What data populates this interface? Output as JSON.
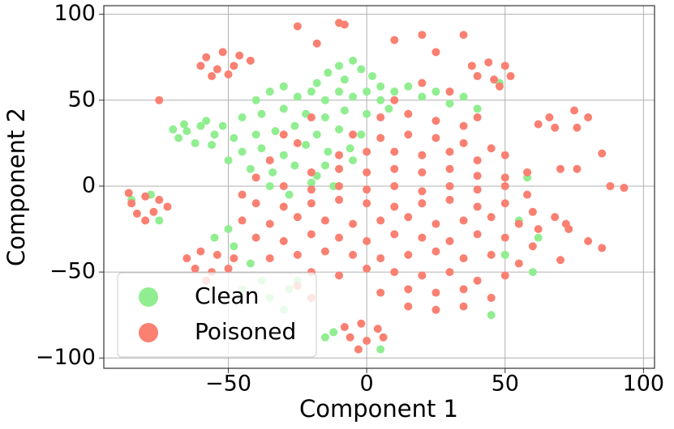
{
  "chart_data": {
    "type": "scatter",
    "xlabel": "Component 1",
    "ylabel": "Component 2",
    "xlim": [
      -95,
      104
    ],
    "ylim": [
      -106,
      105
    ],
    "xticks": [
      {
        "value": -50,
        "label": "−50"
      },
      0,
      50,
      100
    ],
    "yticks": [
      {
        "value": -100,
        "label": "−100"
      },
      {
        "value": -50,
        "label": "−50"
      },
      0,
      50,
      100
    ],
    "grid": true,
    "legend": "lower left",
    "series": [
      {
        "name": "Clean",
        "color": "#90ee90",
        "x": [
          -10,
          -5,
          -2,
          -14,
          -8,
          2,
          -18,
          5,
          -40,
          -35,
          -30,
          -25,
          -20,
          -15,
          -10,
          -5,
          0,
          5,
          10,
          15,
          20,
          25,
          30,
          -45,
          -38,
          -30,
          -22,
          -15,
          -8,
          0,
          8,
          -40,
          -33,
          -26,
          -18,
          -10,
          -2,
          -45,
          -38,
          -30,
          -22,
          -14,
          -6,
          -42,
          -34,
          -26,
          -18,
          -10,
          35,
          40,
          -48,
          -50,
          -35,
          -28,
          -20,
          -12,
          -5,
          -15,
          -65,
          -60,
          -55,
          -68,
          -62,
          -58,
          -52,
          -66,
          -56,
          -70,
          -48,
          -42,
          -38,
          -35,
          -30,
          -28,
          -45,
          -50,
          -55,
          -25,
          50,
          55,
          60,
          58,
          62,
          45,
          -15,
          5,
          -12,
          -75,
          -85,
          48,
          -78
        ],
        "values": [
          70,
          73,
          68,
          66,
          62,
          64,
          60,
          58,
          50,
          55,
          58,
          52,
          55,
          50,
          55,
          52,
          55,
          50,
          55,
          58,
          52,
          55,
          48,
          40,
          42,
          45,
          42,
          40,
          44,
          42,
          45,
          30,
          32,
          35,
          30,
          33,
          30,
          20,
          22,
          18,
          24,
          20,
          22,
          10,
          8,
          12,
          6,
          10,
          52,
          45,
          28,
          15,
          0,
          -5,
          2,
          0,
          15,
          12,
          32,
          35,
          30,
          28,
          25,
          38,
          35,
          36,
          24,
          33,
          -35,
          -45,
          -55,
          -65,
          -72,
          -60,
          -60,
          -25,
          -30,
          -55,
          -40,
          -20,
          -50,
          5,
          -30,
          -75,
          -88,
          -95,
          -85,
          -20,
          -8,
          60,
          -5
        ]
      },
      {
        "name": "Poisoned",
        "color": "#fa8072",
        "x": [
          5,
          15,
          25,
          35,
          -5,
          5,
          15,
          25,
          35,
          45,
          -10,
          0,
          10,
          20,
          30,
          40,
          50,
          -20,
          -10,
          0,
          10,
          20,
          30,
          40,
          50,
          58,
          -30,
          -20,
          -10,
          0,
          10,
          20,
          30,
          40,
          50,
          58,
          -40,
          -30,
          -20,
          -10,
          0,
          10,
          20,
          30,
          40,
          50,
          60,
          -45,
          -35,
          -25,
          -15,
          -5,
          5,
          15,
          25,
          35,
          45,
          55,
          62,
          -40,
          -30,
          -20,
          -10,
          0,
          10,
          20,
          30,
          40,
          50,
          60,
          -35,
          -25,
          -15,
          -5,
          5,
          15,
          25,
          35,
          45,
          55,
          -20,
          -10,
          0,
          10,
          20,
          30,
          40,
          50,
          5,
          15,
          25,
          35,
          45,
          15,
          25,
          35,
          -40,
          -45,
          -25,
          -35,
          10,
          20,
          30,
          40,
          -20,
          -30,
          -58,
          -52,
          -46,
          -60,
          -54,
          -48,
          -42,
          -56,
          -50,
          -85,
          -80,
          -75,
          -83,
          -77,
          -72,
          -80,
          -86,
          -65,
          -60,
          -54,
          -48,
          -62,
          -56,
          -50,
          -58,
          -8,
          -2,
          4,
          -6,
          0,
          6,
          -3,
          38,
          44,
          50,
          40,
          46,
          52,
          48,
          62,
          66,
          68,
          75,
          80,
          76,
          70,
          76,
          88,
          93,
          85,
          68,
          72,
          73,
          80,
          85,
          70,
          -25,
          -20,
          -10,
          -8,
          10,
          20,
          35,
          25,
          -18,
          -25,
          -75
        ],
        "values": [
          40,
          42,
          38,
          35,
          30,
          28,
          30,
          28,
          25,
          22,
          18,
          20,
          20,
          18,
          20,
          15,
          18,
          8,
          10,
          8,
          10,
          8,
          10,
          6,
          5,
          8,
          0,
          -2,
          0,
          -2,
          0,
          -3,
          0,
          -2,
          0,
          -5,
          -10,
          -12,
          -10,
          -8,
          -10,
          -12,
          -10,
          -8,
          -12,
          -10,
          -15,
          -20,
          -22,
          -18,
          -20,
          -22,
          -20,
          -18,
          -22,
          -20,
          -18,
          -22,
          -25,
          -30,
          -32,
          -28,
          -30,
          -32,
          -28,
          -30,
          -32,
          -28,
          -30,
          -35,
          -42,
          -40,
          -38,
          -40,
          -42,
          -40,
          -38,
          -42,
          -40,
          -45,
          -50,
          -52,
          -48,
          -50,
          -52,
          -50,
          -55,
          -52,
          -62,
          -60,
          -62,
          -60,
          -65,
          -70,
          -72,
          -70,
          5,
          -5,
          25,
          15,
          50,
          60,
          55,
          40,
          40,
          30,
          75,
          78,
          76,
          70,
          68,
          70,
          73,
          64,
          65,
          -10,
          -6,
          -8,
          -16,
          -15,
          -12,
          -20,
          -4,
          -42,
          -38,
          -40,
          -42,
          -48,
          -50,
          -48,
          -55,
          -82,
          -80,
          -83,
          -88,
          -90,
          -88,
          -95,
          70,
          72,
          70,
          64,
          62,
          64,
          58,
          36,
          40,
          34,
          44,
          40,
          34,
          10,
          10,
          0,
          -1,
          19,
          -18,
          -22,
          -25,
          -32,
          -36,
          -43,
          -58,
          -65,
          95,
          94,
          85,
          88,
          88,
          78,
          83,
          93,
          50
        ]
      }
    ]
  }
}
